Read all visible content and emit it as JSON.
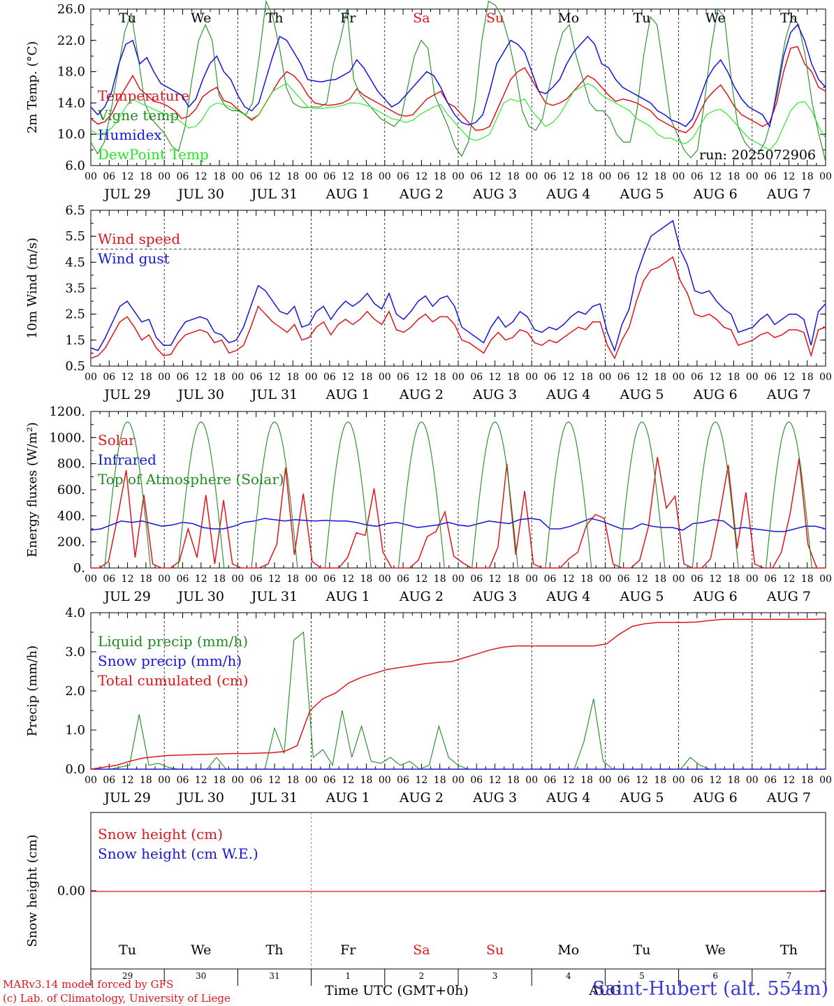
{
  "days": [
    {
      "weekday": "Tu",
      "weekend": false,
      "label": "JUL 29",
      "num": "29"
    },
    {
      "weekday": "We",
      "weekend": false,
      "label": "JUL 30",
      "num": "30"
    },
    {
      "weekday": "Th",
      "weekend": false,
      "label": "JUL 31",
      "num": "31"
    },
    {
      "weekday": "Fr",
      "weekend": false,
      "label": "AUG  1",
      "num": "1"
    },
    {
      "weekday": "Sa",
      "weekend": true,
      "label": "AUG  2",
      "num": "2"
    },
    {
      "weekday": "Su",
      "weekend": true,
      "label": "AUG  3",
      "num": "3"
    },
    {
      "weekday": "Mo",
      "weekend": false,
      "label": "AUG  4",
      "num": "4"
    },
    {
      "weekday": "Tu",
      "weekend": false,
      "label": "AUG  5",
      "num": "5"
    },
    {
      "weekday": "We",
      "weekend": false,
      "label": "AUG  6",
      "num": "6"
    },
    {
      "weekday": "Th",
      "weekend": false,
      "label": "AUG  7",
      "num": "7"
    }
  ],
  "hour_labels": [
    "00",
    "06",
    "12",
    "18"
  ],
  "run_label": "run: 2025072906",
  "xlabel": "Time UTC (GMT+0h)",
  "month_overlay": "AUG",
  "credit_line1": "MARv3.14 model forced by GFS",
  "credit_line2": "(c) Lab. of Climatology, University of Liege",
  "station": "Saint-Hubert (alt. 554m)",
  "colors": {
    "red": "#e0151b",
    "green": "#228b22",
    "blue": "#1515d8",
    "lightgreen": "#22e822",
    "weekend": "#e0151b"
  },
  "chart_data": [
    {
      "type": "line",
      "ylabel": "2m Temp. (°C)",
      "ylim": [
        6,
        26
      ],
      "yticks": [
        "6.0",
        "10.0",
        "14.0",
        "18.0",
        "22.0",
        "26.0"
      ],
      "x_hours_per_step": 3,
      "series": [
        {
          "name": "Temperature",
          "color": "red",
          "values": [
            12,
            11.3,
            11.6,
            12.6,
            14.5,
            16,
            17.5,
            15.8,
            15,
            14.2,
            14,
            13.6,
            13,
            12,
            12.3,
            13.2,
            14.8,
            15.5,
            16,
            14.3,
            14,
            13.2,
            12.5,
            11.8,
            12.5,
            14,
            15.5,
            17,
            18,
            17.5,
            16.5,
            15,
            14,
            13.8,
            13.7,
            13.8,
            14,
            14.5,
            15.8,
            15,
            14.5,
            14,
            13.5,
            13,
            12.5,
            12.3,
            12.5,
            13.5,
            14.5,
            15,
            15.5,
            14,
            13.5,
            12.5,
            11.5,
            10.5,
            10.6,
            11,
            13,
            15,
            17,
            18,
            18.5,
            17,
            15.5,
            14,
            13.7,
            14,
            14.5,
            15.5,
            16.5,
            17.5,
            17,
            16,
            15,
            14.2,
            14.5,
            14.3,
            14,
            13.5,
            13,
            12,
            11.5,
            11,
            10.5,
            10.2,
            11,
            12.8,
            14.5,
            15.5,
            16.3,
            15,
            13.5,
            12.5,
            12,
            11.5,
            11,
            11.5,
            14,
            18,
            21,
            21.2,
            19,
            18,
            16,
            15.5
          ]
        },
        {
          "name": "Vigne temp",
          "color": "green",
          "values": [
            9,
            7.5,
            9,
            13,
            18,
            23,
            25.5,
            20,
            14,
            12,
            11,
            10,
            8.5,
            7.8,
            11,
            17,
            22,
            24,
            22,
            15,
            13.5,
            13,
            13,
            12.5,
            14,
            20,
            27,
            25,
            21,
            16,
            14,
            13.5,
            13.4,
            13.5,
            13.5,
            14,
            19,
            22,
            26,
            17,
            15,
            14,
            13,
            12,
            11.5,
            11,
            12,
            16,
            20,
            22,
            21,
            15,
            13,
            11,
            8.5,
            7.2,
            9,
            14,
            22,
            27,
            26.5,
            25,
            22,
            18,
            13,
            11,
            10.5,
            12,
            16,
            20,
            23,
            24,
            20,
            17,
            14,
            13,
            13,
            12,
            10,
            9,
            9,
            13,
            20,
            25,
            24,
            18,
            12,
            10,
            8,
            7,
            8,
            14,
            21,
            26,
            25,
            17,
            11,
            9,
            8,
            7.5,
            9,
            12,
            17,
            22,
            25,
            24,
            20,
            14,
            10,
            6.5
          ]
        },
        {
          "name": "Humidex",
          "color": "blue",
          "values": [
            13.5,
            12.5,
            13.5,
            15.5,
            19,
            21.5,
            22,
            19,
            19.8,
            18,
            16.5,
            16,
            15.5,
            15,
            13.5,
            14.5,
            17,
            19,
            20,
            18,
            17,
            15,
            13.5,
            13,
            14,
            17,
            20,
            22.5,
            22,
            20.5,
            19,
            17,
            16.8,
            16.7,
            16.9,
            17,
            17.5,
            18,
            19.5,
            18.5,
            17,
            15.5,
            14.5,
            13.5,
            14,
            15,
            16,
            17,
            18,
            17.5,
            16,
            14,
            12.5,
            11.5,
            11.2,
            11.5,
            12.5,
            15.5,
            19,
            20.5,
            22,
            21.5,
            20.5,
            18,
            15.5,
            15.2,
            16,
            17,
            19,
            20.5,
            21.5,
            22.5,
            21.5,
            19,
            18.5,
            17,
            16,
            15.5,
            15,
            14.5,
            14,
            13,
            12.5,
            11.8,
            11.5,
            11,
            12,
            14.5,
            17,
            18.5,
            19.5,
            18,
            16,
            14.5,
            13.5,
            13,
            12.5,
            11,
            15,
            20,
            23,
            24,
            22,
            19,
            17,
            16
          ]
        },
        {
          "name": "DewPoint Temp",
          "color": "lightgreen",
          "values": [
            10.5,
            10,
            10.2,
            10.8,
            12,
            13.5,
            14.5,
            14,
            13.6,
            13.2,
            12.8,
            12.5,
            12.2,
            11.5,
            10.8,
            11,
            12,
            13.5,
            14,
            13.8,
            13.5,
            13,
            12.5,
            12,
            12.5,
            14,
            15.5,
            16,
            16.5,
            15.5,
            14.5,
            13.5,
            13.3,
            13.3,
            13.4,
            13.5,
            13.7,
            14,
            14,
            13.8,
            13.5,
            13,
            12.5,
            12,
            11.8,
            11.5,
            11.8,
            12.5,
            13,
            13.5,
            13.8,
            12.5,
            11.5,
            10.5,
            9.5,
            9.2,
            9.5,
            10,
            12,
            14,
            14.5,
            14.2,
            14.5,
            13,
            12,
            11,
            11.5,
            12.5,
            14,
            15.5,
            16,
            16.5,
            16,
            15,
            14.5,
            14,
            13.5,
            13,
            12,
            11.5,
            11,
            10,
            9.5,
            9.5,
            9,
            8.8,
            9.5,
            11,
            12.5,
            13,
            13.2,
            12.5,
            11.5,
            10.5,
            9.5,
            9,
            8.5,
            8,
            9,
            11,
            13,
            14,
            14.2,
            13,
            11,
            9.5
          ]
        }
      ]
    },
    {
      "type": "line",
      "ylabel": "10m Wind (m/s)",
      "ylim": [
        0.5,
        6.5
      ],
      "yticks": [
        "0.5",
        "1.5",
        "2.5",
        "3.5",
        "4.5",
        "5.5",
        "6.5"
      ],
      "reference_line": 5.0,
      "series": [
        {
          "name": "Wind speed",
          "color": "red",
          "values": [
            0.8,
            0.9,
            1.2,
            1.7,
            2.2,
            2.4,
            2,
            1.5,
            1.7,
            1.2,
            0.9,
            0.95,
            1.4,
            1.7,
            1.8,
            1.9,
            1.8,
            1.4,
            1.5,
            1,
            1.1,
            1.3,
            2,
            2.8,
            2.5,
            2.2,
            2,
            1.8,
            2.1,
            1.5,
            1.6,
            2,
            2.2,
            1.7,
            2.1,
            2.3,
            2.1,
            2.3,
            2.6,
            2.3,
            2.1,
            2.6,
            1.9,
            1.8,
            2,
            2.3,
            2.5,
            2.2,
            2.4,
            2.4,
            2.1,
            1.5,
            1.4,
            1.2,
            1,
            1.5,
            1.8,
            1.5,
            1.6,
            1.9,
            1.8,
            1.4,
            1.3,
            1.5,
            1.4,
            1.6,
            1.8,
            2,
            1.9,
            2.2,
            2.2,
            1.3,
            0.8,
            1.5,
            2,
            3,
            3.8,
            4.2,
            4.3,
            4.5,
            4.7,
            3.8,
            3.3,
            2.5,
            2.4,
            2.5,
            2.3,
            2,
            1.9,
            1.3,
            1.4,
            1.5,
            1.7,
            1.8,
            1.6,
            1.7,
            1.9,
            1.9,
            1.8,
            0.9,
            1.9,
            2
          ]
        },
        {
          "name": "Wind gust",
          "color": "blue",
          "values": [
            1.2,
            1.1,
            1.6,
            2.2,
            2.8,
            3,
            2.6,
            2.2,
            2.3,
            1.6,
            1.3,
            1.3,
            1.8,
            2.2,
            2.3,
            2.4,
            2.3,
            1.8,
            1.7,
            1.4,
            1.5,
            2,
            2.8,
            3.6,
            3.4,
            3,
            2.6,
            2.5,
            2.8,
            2,
            2.1,
            2.6,
            2.8,
            2.3,
            2.7,
            3,
            2.8,
            3,
            3.3,
            2.9,
            2.7,
            3.3,
            2.5,
            2.3,
            2.6,
            3,
            3.2,
            2.8,
            3.1,
            3.2,
            2.8,
            2,
            1.8,
            1.6,
            1.4,
            2,
            2.4,
            2,
            2.2,
            2.6,
            2.4,
            1.9,
            1.8,
            2,
            1.9,
            2.1,
            2.4,
            2.6,
            2.5,
            2.8,
            2.9,
            1.8,
            1.1,
            2.1,
            2.7,
            4,
            4.8,
            5.5,
            5.7,
            5.9,
            6.1,
            5,
            4.4,
            3.4,
            3.3,
            3.4,
            3,
            2.7,
            2.5,
            1.8,
            1.9,
            2,
            2.3,
            2.5,
            2.1,
            2.3,
            2.5,
            2.5,
            2.3,
            1.3,
            2.6,
            2.9
          ]
        }
      ]
    },
    {
      "type": "line",
      "ylabel": "Energy fluxes (W/m²)",
      "ylim": [
        0,
        1200
      ],
      "yticks": [
        "0.",
        "200.",
        "400.",
        "600.",
        "800.",
        "1000.",
        "1200."
      ],
      "series": [
        {
          "name": "Solar",
          "color": "red",
          "values": [
            0,
            0,
            50,
            380,
            750,
            80,
            560,
            30,
            0,
            0,
            50,
            300,
            80,
            560,
            30,
            520,
            30,
            0,
            0,
            0,
            30,
            180,
            770,
            100,
            570,
            50,
            0,
            0,
            0,
            80,
            270,
            250,
            610,
            120,
            0,
            0,
            0,
            60,
            240,
            280,
            430,
            90,
            40,
            0,
            0,
            0,
            160,
            800,
            100,
            590,
            30,
            0,
            0,
            0,
            70,
            120,
            330,
            410,
            380,
            30,
            0,
            0,
            60,
            320,
            850,
            460,
            550,
            30,
            0,
            0,
            70,
            400,
            790,
            150,
            580,
            30,
            0,
            0,
            120,
            420,
            840,
            180,
            0,
            0
          ]
        },
        {
          "name": "Infrared",
          "color": "blue",
          "values": [
            290,
            300,
            330,
            360,
            350,
            360,
            340,
            320,
            330,
            350,
            340,
            310,
            300,
            300,
            320,
            350,
            360,
            380,
            370,
            360,
            370,
            365,
            360,
            365,
            360,
            360,
            350,
            330,
            320,
            340,
            350,
            330,
            310,
            320,
            330,
            350,
            330,
            320,
            340,
            360,
            350,
            340,
            370,
            380,
            370,
            300,
            300,
            320,
            350,
            380,
            360,
            330,
            300,
            300,
            340,
            320,
            310,
            310,
            290,
            340,
            350,
            370,
            360,
            300,
            310,
            300,
            290,
            280,
            280,
            300,
            320,
            320,
            300
          ]
        },
        {
          "name": "Top of Atmosphere (Solar)",
          "color": "green",
          "peak": 1120
        }
      ]
    },
    {
      "type": "line",
      "ylabel": "Precip (mm/h)",
      "ylim": [
        0,
        4
      ],
      "yticks": [
        "0.0",
        "1.0",
        "2.0",
        "3.0",
        "4.0"
      ],
      "series": [
        {
          "name": "Liquid precip (mm/h)",
          "color": "green",
          "values": [
            0,
            0,
            0,
            0.05,
            0.1,
            1.4,
            0.1,
            0.15,
            0.05,
            0,
            0,
            0,
            0,
            0.3,
            0,
            0,
            0,
            0,
            0,
            1.05,
            0.4,
            3.3,
            3.5,
            0.3,
            0.5,
            0.1,
            1.5,
            0.3,
            1.1,
            0.2,
            0.15,
            0.3,
            0.1,
            0.2,
            0,
            0.1,
            1.1,
            0.3,
            0.1,
            0,
            0,
            0,
            0,
            0,
            0,
            0,
            0,
            0,
            0,
            0,
            0,
            0.7,
            1.8,
            0.2,
            0,
            0,
            0,
            0,
            0,
            0,
            0,
            0,
            0.3,
            0.1,
            0,
            0,
            0,
            0,
            0,
            0,
            0,
            0,
            0,
            0,
            0,
            0,
            0
          ]
        },
        {
          "name": "Snow precip (mm/h)",
          "color": "blue",
          "values": [
            0,
            0
          ]
        },
        {
          "name": "Total cumulated (cm)",
          "color": "red",
          "values": [
            0,
            0.05,
            0.1,
            0.2,
            0.28,
            0.32,
            0.35,
            0.36,
            0.37,
            0.38,
            0.39,
            0.4,
            0.4,
            0.41,
            0.42,
            0.45,
            0.6,
            1.5,
            1.8,
            1.95,
            2.2,
            2.35,
            2.45,
            2.55,
            2.6,
            2.65,
            2.7,
            2.73,
            2.75,
            2.85,
            2.95,
            3.05,
            3.12,
            3.15,
            3.15,
            3.15,
            3.15,
            3.15,
            3.15,
            3.15,
            3.2,
            3.45,
            3.65,
            3.72,
            3.75,
            3.75,
            3.75,
            3.76,
            3.8,
            3.83,
            3.83,
            3.83,
            3.83,
            3.83,
            3.83,
            3.83,
            3.83,
            3.84
          ]
        }
      ]
    },
    {
      "type": "line",
      "ylabel": "Snow height (cm)",
      "yticks": [
        "0.00"
      ],
      "series": [
        {
          "name": "Snow height (cm)",
          "color": "red",
          "values": [
            0,
            0
          ]
        },
        {
          "name": "Snow height (cm W.E.)",
          "color": "blue",
          "values": [
            0,
            0
          ]
        }
      ]
    }
  ]
}
